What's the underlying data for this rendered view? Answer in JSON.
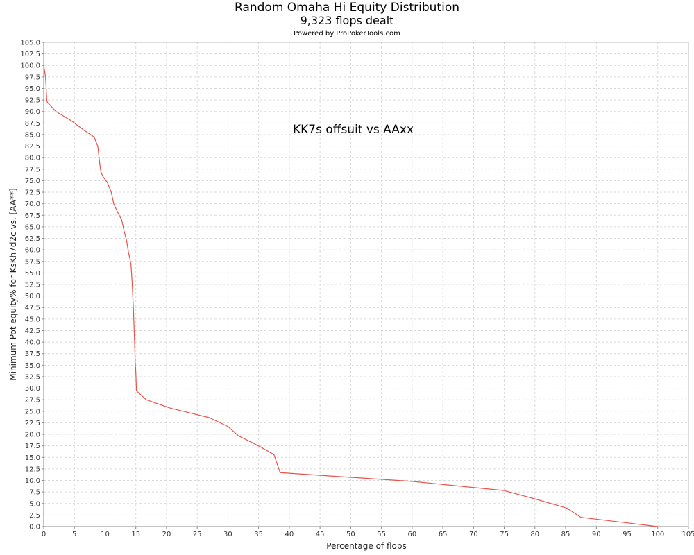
{
  "header": {
    "title": "Random Omaha Hi Equity Distribution",
    "subtitle": "9,323 flops dealt",
    "credit": "Powered by ProPokerTools.com"
  },
  "chart_data": {
    "type": "line",
    "title": "Random Omaha Hi Equity Distribution",
    "subtitle": "9,323 flops dealt",
    "xlabel": "Percentage of flops",
    "ylabel": "Minimum Pot equity% for KsKh7d2c vs. [AA**]",
    "xlim": [
      0,
      105
    ],
    "ylim": [
      0,
      105
    ],
    "x_ticks": [
      "0",
      "5",
      "10",
      "15",
      "20",
      "25",
      "30",
      "35",
      "40",
      "45",
      "50",
      "55",
      "60",
      "65",
      "70",
      "75",
      "80",
      "85",
      "90",
      "95",
      "100",
      "105"
    ],
    "y_ticks": [
      "0.0",
      "2.5",
      "5.0",
      "7.5",
      "10.0",
      "12.5",
      "15.0",
      "17.5",
      "20.0",
      "22.5",
      "25.0",
      "27.5",
      "30.0",
      "32.5",
      "35.0",
      "37.5",
      "40.0",
      "42.5",
      "45.0",
      "47.5",
      "50.0",
      "52.5",
      "55.0",
      "57.5",
      "60.0",
      "62.5",
      "65.0",
      "67.5",
      "70.0",
      "72.5",
      "75.0",
      "77.5",
      "80.0",
      "82.5",
      "85.0",
      "87.5",
      "90.0",
      "92.5",
      "95.0",
      "97.5",
      "100.0",
      "102.5",
      "105.0"
    ],
    "grid": true,
    "annotation": "KK7s offsuit vs AAxx",
    "series_color": "#e8534a",
    "series": [
      {
        "x": [
          0,
          0.3,
          0.5,
          0.6,
          2,
          4.5,
          6.5,
          8.2,
          8.8,
          9.1,
          9.3,
          9.6,
          10.4,
          11,
          11.4,
          12.1,
          12.7,
          13.1,
          13.5,
          13.8,
          14.2,
          14.4,
          14.5,
          14.6,
          14.8,
          14.9,
          15,
          15.1,
          15.2,
          16.7,
          20.6,
          27,
          30,
          31.7,
          35,
          37.5,
          38.5,
          60,
          75,
          80,
          85.2,
          87.5,
          100
        ],
        "y": [
          100,
          97.5,
          92.5,
          92,
          90,
          88,
          86,
          84.5,
          82.5,
          79,
          77,
          76,
          74.5,
          72.5,
          70,
          68,
          66.5,
          64,
          62,
          59.5,
          57,
          53,
          50,
          47.5,
          40,
          35.5,
          33.5,
          29.5,
          29.3,
          27.5,
          25.7,
          23.6,
          21.7,
          19.7,
          17.5,
          15.6,
          11.7,
          9.8,
          7.8,
          6,
          4,
          2,
          0
        ]
      }
    ]
  }
}
